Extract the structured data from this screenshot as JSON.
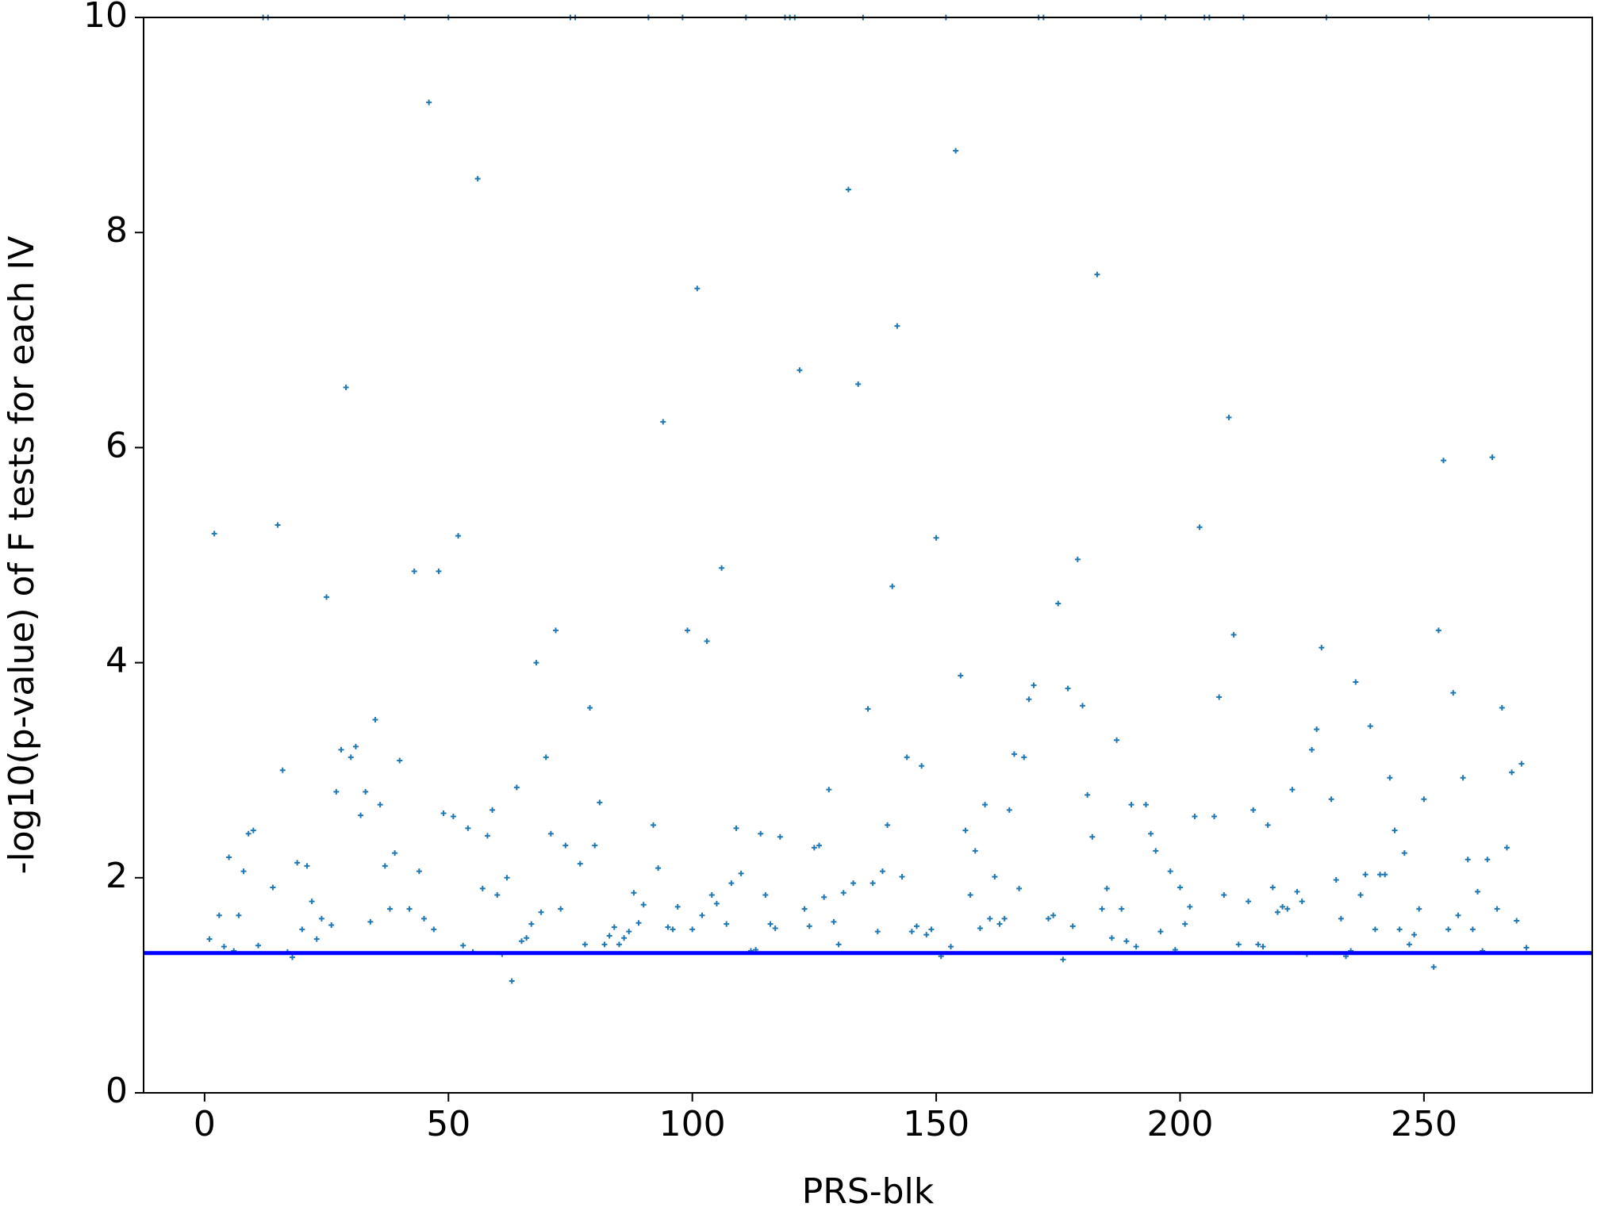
{
  "chart_data": {
    "type": "scatter",
    "x_label": "PRS-blk",
    "y_label": "-log10(p-value) of F tests for each IV",
    "xlim": [
      -12.5,
      284.5
    ],
    "ylim": [
      0,
      10
    ],
    "xticks": [
      0,
      50,
      100,
      150,
      200,
      250
    ],
    "yticks": [
      0,
      2,
      4,
      6,
      8,
      10
    ],
    "grid": false,
    "hline": {
      "y": 1.3,
      "color": "#0000ff"
    },
    "series": [
      {
        "color": "#1f77b4",
        "x": [
          1,
          2,
          3,
          4,
          5,
          6,
          7,
          8,
          9,
          10,
          11,
          12,
          13,
          14,
          15,
          16,
          17,
          18,
          19,
          20,
          21,
          22,
          23,
          24,
          25,
          26,
          27,
          28,
          29,
          30,
          31,
          32,
          33,
          34,
          35,
          36,
          37,
          38,
          39,
          40,
          41,
          42,
          43,
          44,
          45,
          46,
          47,
          48,
          49,
          50,
          51,
          52,
          53,
          54,
          55,
          56,
          57,
          58,
          59,
          60,
          61,
          62,
          63,
          64,
          65,
          66,
          67,
          68,
          69,
          70,
          71,
          72,
          73,
          74,
          75,
          76,
          77,
          78,
          79,
          80,
          81,
          82,
          83,
          84,
          85,
          86,
          87,
          88,
          89,
          90,
          91,
          92,
          93,
          94,
          95,
          96,
          97,
          98,
          99,
          100,
          101,
          102,
          103,
          104,
          105,
          106,
          107,
          108,
          109,
          110,
          111,
          112,
          113,
          114,
          115,
          116,
          117,
          118,
          119,
          120,
          121,
          122,
          123,
          124,
          125,
          126,
          127,
          128,
          129,
          130,
          131,
          132,
          133,
          134,
          135,
          136,
          137,
          138,
          139,
          140,
          141,
          142,
          143,
          144,
          145,
          146,
          147,
          148,
          149,
          150,
          151,
          152,
          153,
          154,
          155,
          156,
          157,
          158,
          159,
          160,
          161,
          162,
          163,
          164,
          165,
          166,
          167,
          168,
          169,
          170,
          171,
          172,
          173,
          174,
          175,
          176,
          177,
          178,
          179,
          180,
          181,
          182,
          183,
          184,
          185,
          186,
          187,
          188,
          189,
          190,
          191,
          192,
          193,
          194,
          195,
          196,
          197,
          198,
          199,
          200,
          201,
          202,
          203,
          204,
          205,
          206,
          207,
          208,
          209,
          210,
          211,
          212,
          213,
          214,
          215,
          216,
          217,
          218,
          219,
          220,
          221,
          222,
          223,
          224,
          225,
          226,
          227,
          228,
          229,
          230,
          231,
          232,
          233,
          234,
          235,
          236,
          237,
          238,
          239,
          240,
          241,
          242,
          243,
          244,
          245,
          246,
          247,
          248,
          249,
          250,
          251,
          252,
          253,
          254,
          255,
          256,
          257,
          258,
          259,
          260,
          261,
          262,
          263,
          264,
          265,
          266,
          267,
          268,
          269,
          270,
          271
        ],
        "values": [
          1.43,
          5.2,
          1.65,
          1.36,
          2.19,
          1.32,
          1.65,
          2.06,
          2.41,
          2.44,
          1.37,
          10,
          10,
          1.91,
          5.28,
          3.0,
          1.31,
          1.26,
          2.14,
          1.52,
          2.11,
          1.78,
          1.43,
          1.62,
          4.61,
          1.56,
          2.8,
          3.19,
          6.56,
          3.12,
          3.22,
          2.58,
          2.8,
          1.59,
          3.47,
          2.68,
          2.11,
          1.71,
          2.23,
          3.09,
          10,
          1.71,
          4.85,
          2.06,
          1.62,
          9.21,
          1.52,
          4.85,
          2.6,
          10,
          2.57,
          5.18,
          1.37,
          2.46,
          1.31,
          8.5,
          1.9,
          2.39,
          2.63,
          1.84,
          1.29,
          2.0,
          1.04,
          2.84,
          1.41,
          1.44,
          1.57,
          4.0,
          1.68,
          3.12,
          2.41,
          4.3,
          1.71,
          2.3,
          10,
          10,
          2.13,
          1.38,
          3.58,
          2.3,
          2.7,
          1.38,
          1.46,
          1.54,
          1.38,
          1.44,
          1.5,
          1.86,
          1.58,
          1.75,
          10,
          2.49,
          2.09,
          6.24,
          1.54,
          1.52,
          1.73,
          10,
          4.3,
          1.52,
          7.48,
          1.65,
          4.2,
          1.84,
          1.76,
          4.88,
          1.57,
          1.95,
          2.46,
          2.04,
          10,
          1.32,
          1.33,
          2.41,
          1.84,
          1.57,
          1.53,
          2.38,
          10,
          10,
          10,
          6.72,
          1.71,
          1.55,
          2.28,
          2.3,
          1.82,
          2.82,
          1.59,
          1.38,
          1.86,
          8.4,
          1.95,
          6.59,
          10,
          3.57,
          1.95,
          1.5,
          2.06,
          2.49,
          4.71,
          7.13,
          2.01,
          3.12,
          1.5,
          1.55,
          3.04,
          1.47,
          1.52,
          5.16,
          1.27,
          10,
          1.36,
          8.76,
          3.88,
          2.44,
          1.84,
          2.25,
          1.53,
          2.68,
          1.62,
          2.01,
          1.57,
          1.62,
          2.63,
          3.15,
          1.9,
          3.12,
          3.66,
          3.79,
          10,
          10,
          1.62,
          1.65,
          4.55,
          1.24,
          3.76,
          1.55,
          4.96,
          3.6,
          2.77,
          2.38,
          7.61,
          1.71,
          1.9,
          1.44,
          3.28,
          1.71,
          1.41,
          2.68,
          1.36,
          10,
          2.68,
          2.41,
          2.25,
          1.5,
          10,
          2.06,
          1.33,
          1.91,
          1.57,
          1.73,
          2.57,
          5.26,
          10,
          10,
          2.57,
          3.68,
          1.84,
          6.28,
          4.26,
          1.38,
          10,
          1.78,
          2.63,
          1.38,
          1.36,
          2.49,
          1.91,
          1.68,
          1.73,
          1.71,
          2.82,
          1.87,
          1.78,
          1.29,
          3.19,
          3.38,
          4.14,
          10,
          2.73,
          1.98,
          1.62,
          1.27,
          1.32,
          3.82,
          1.84,
          2.03,
          3.41,
          1.52,
          2.03,
          2.03,
          2.93,
          2.44,
          1.52,
          2.23,
          1.38,
          1.47,
          1.71,
          2.73,
          10,
          1.17,
          4.3,
          5.88,
          1.52,
          3.72,
          1.65,
          2.93,
          2.17,
          1.52,
          1.87,
          1.32,
          2.17,
          5.91,
          1.71,
          3.58,
          2.28,
          2.98,
          1.6,
          3.06,
          1.35
        ]
      }
    ]
  }
}
